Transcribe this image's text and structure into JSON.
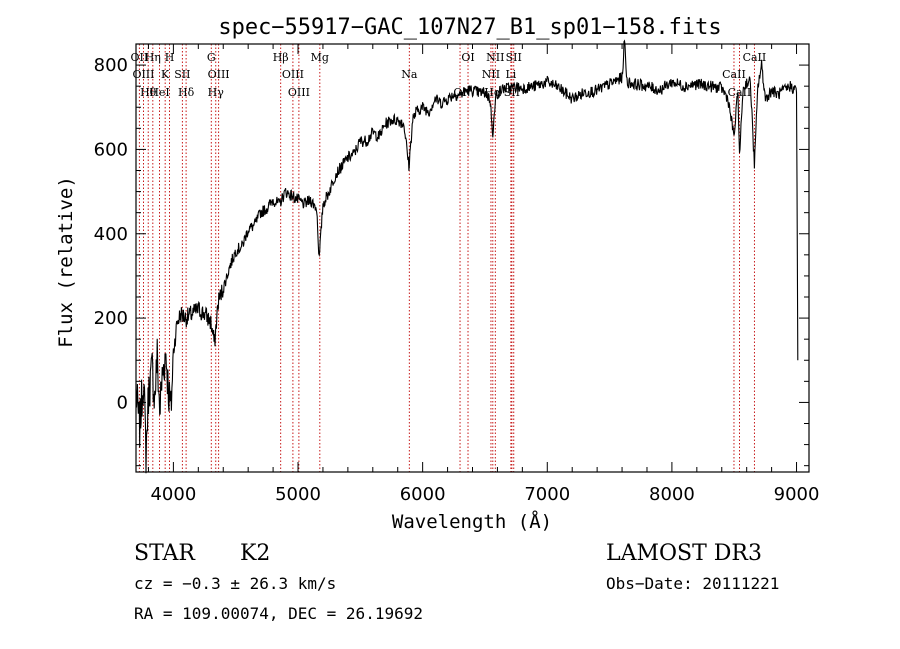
{
  "chart_data": {
    "type": "line",
    "title": "spec−55917−GAC_107N27_B1_sp01−158.fits",
    "xlabel": "Wavelength (Å)",
    "ylabel": "Flux (relative)",
    "xlim": [
      3700,
      9100
    ],
    "ylim": [
      -165,
      850
    ],
    "xticks": [
      4000,
      5000,
      6000,
      7000,
      8000,
      9000
    ],
    "yticks": [
      0,
      200,
      400,
      600,
      800
    ],
    "grid": false,
    "series": [
      {
        "name": "flux",
        "color": "#000000",
        "anchors": [
          [
            3700,
            20
          ],
          [
            3730,
            -60
          ],
          [
            3760,
            60
          ],
          [
            3780,
            -120
          ],
          [
            3800,
            20
          ],
          [
            3830,
            80
          ],
          [
            3850,
            10
          ],
          [
            3870,
            110
          ],
          [
            3890,
            -20
          ],
          [
            3910,
            60
          ],
          [
            3940,
            120
          ],
          [
            3960,
            30
          ],
          [
            3980,
            -20
          ],
          [
            4000,
            120
          ],
          [
            4030,
            190
          ],
          [
            4060,
            210
          ],
          [
            4100,
            200
          ],
          [
            4150,
            210
          ],
          [
            4200,
            220
          ],
          [
            4250,
            210
          ],
          [
            4300,
            190
          ],
          [
            4330,
            140
          ],
          [
            4360,
            240
          ],
          [
            4400,
            270
          ],
          [
            4450,
            320
          ],
          [
            4500,
            360
          ],
          [
            4550,
            370
          ],
          [
            4600,
            410
          ],
          [
            4650,
            420
          ],
          [
            4700,
            450
          ],
          [
            4750,
            460
          ],
          [
            4800,
            480
          ],
          [
            4850,
            470
          ],
          [
            4900,
            500
          ],
          [
            4950,
            490
          ],
          [
            5000,
            480
          ],
          [
            5050,
            470
          ],
          [
            5100,
            480
          ],
          [
            5150,
            460
          ],
          [
            5170,
            340
          ],
          [
            5200,
            470
          ],
          [
            5250,
            500
          ],
          [
            5300,
            540
          ],
          [
            5350,
            560
          ],
          [
            5400,
            580
          ],
          [
            5450,
            590
          ],
          [
            5500,
            620
          ],
          [
            5550,
            620
          ],
          [
            5600,
            640
          ],
          [
            5650,
            630
          ],
          [
            5700,
            660
          ],
          [
            5750,
            670
          ],
          [
            5800,
            670
          ],
          [
            5850,
            660
          ],
          [
            5890,
            560
          ],
          [
            5920,
            670
          ],
          [
            5950,
            690
          ],
          [
            6000,
            700
          ],
          [
            6050,
            690
          ],
          [
            6100,
            720
          ],
          [
            6150,
            710
          ],
          [
            6200,
            720
          ],
          [
            6250,
            730
          ],
          [
            6300,
            730
          ],
          [
            6350,
            740
          ],
          [
            6400,
            740
          ],
          [
            6450,
            735
          ],
          [
            6500,
            735
          ],
          [
            6540,
            720
          ],
          [
            6563,
            640
          ],
          [
            6590,
            730
          ],
          [
            6650,
            745
          ],
          [
            6700,
            745
          ],
          [
            6750,
            748
          ],
          [
            6800,
            745
          ],
          [
            6900,
            750
          ],
          [
            7000,
            760
          ],
          [
            7100,
            745
          ],
          [
            7200,
            720
          ],
          [
            7300,
            735
          ],
          [
            7400,
            740
          ],
          [
            7500,
            755
          ],
          [
            7600,
            770
          ],
          [
            7620,
            860
          ],
          [
            7640,
            760
          ],
          [
            7700,
            755
          ],
          [
            7800,
            750
          ],
          [
            7900,
            740
          ],
          [
            8000,
            760
          ],
          [
            8100,
            750
          ],
          [
            8200,
            755
          ],
          [
            8300,
            750
          ],
          [
            8400,
            745
          ],
          [
            8450,
            720
          ],
          [
            8498,
            630
          ],
          [
            8530,
            740
          ],
          [
            8542,
            580
          ],
          [
            8570,
            740
          ],
          [
            8600,
            760
          ],
          [
            8630,
            760
          ],
          [
            8662,
            560
          ],
          [
            8690,
            750
          ],
          [
            8720,
            800
          ],
          [
            8750,
            720
          ],
          [
            8800,
            740
          ],
          [
            8850,
            730
          ],
          [
            8900,
            740
          ],
          [
            8950,
            750
          ],
          [
            9000,
            740
          ],
          [
            9010,
            100
          ]
        ]
      }
    ],
    "lines": [
      {
        "label": "OII",
        "wavelength": 3727
      },
      {
        "label": "OIII",
        "wavelength": 3760
      },
      {
        "label": "Hθ",
        "wavelength": 3798
      },
      {
        "label": "Hη",
        "wavelength": 3835
      },
      {
        "label": "K",
        "wavelength": 3934
      },
      {
        "label": "HeI",
        "wavelength": 3889
      },
      {
        "label": "H",
        "wavelength": 3969
      },
      {
        "label": "SII",
        "wavelength": 4072
      },
      {
        "label": "Hδ",
        "wavelength": 4102
      },
      {
        "label": "G",
        "wavelength": 4304
      },
      {
        "label": "OIII",
        "wavelength": 4363
      },
      {
        "label": "Hγ",
        "wavelength": 4340
      },
      {
        "label": "Hβ",
        "wavelength": 4861
      },
      {
        "label": "OIII",
        "wavelength": 4959
      },
      {
        "label": "OIII",
        "wavelength": 5007
      },
      {
        "label": "Mg",
        "wavelength": 5175
      },
      {
        "label": "Na",
        "wavelength": 5893
      },
      {
        "label": "OI",
        "wavelength": 6300
      },
      {
        "label": "OI",
        "wavelength": 6364
      },
      {
        "label": "NII",
        "wavelength": 6548
      },
      {
        "label": "Hα",
        "wavelength": 6563
      },
      {
        "label": "NII",
        "wavelength": 6583
      },
      {
        "label": "Li",
        "wavelength": 6708
      },
      {
        "label": "SII",
        "wavelength": 6716
      },
      {
        "label": "SII",
        "wavelength": 6731
      },
      {
        "label": "CaII",
        "wavelength": 8498
      },
      {
        "label": "CaII",
        "wavelength": 8542
      },
      {
        "label": "CaII",
        "wavelength": 8662
      }
    ]
  },
  "info": {
    "class": "STAR",
    "subclass": "K2",
    "survey": "LAMOST DR3",
    "cz": "cz = −0.3 ± 26.3 km/s",
    "obs_date": "Obs−Date: 20111221",
    "coords": "RA = 109.00074, DEC =  26.19692"
  },
  "colors": {
    "spectrum": "#000000",
    "line_marker": "#c00000",
    "axes": "#000000"
  }
}
